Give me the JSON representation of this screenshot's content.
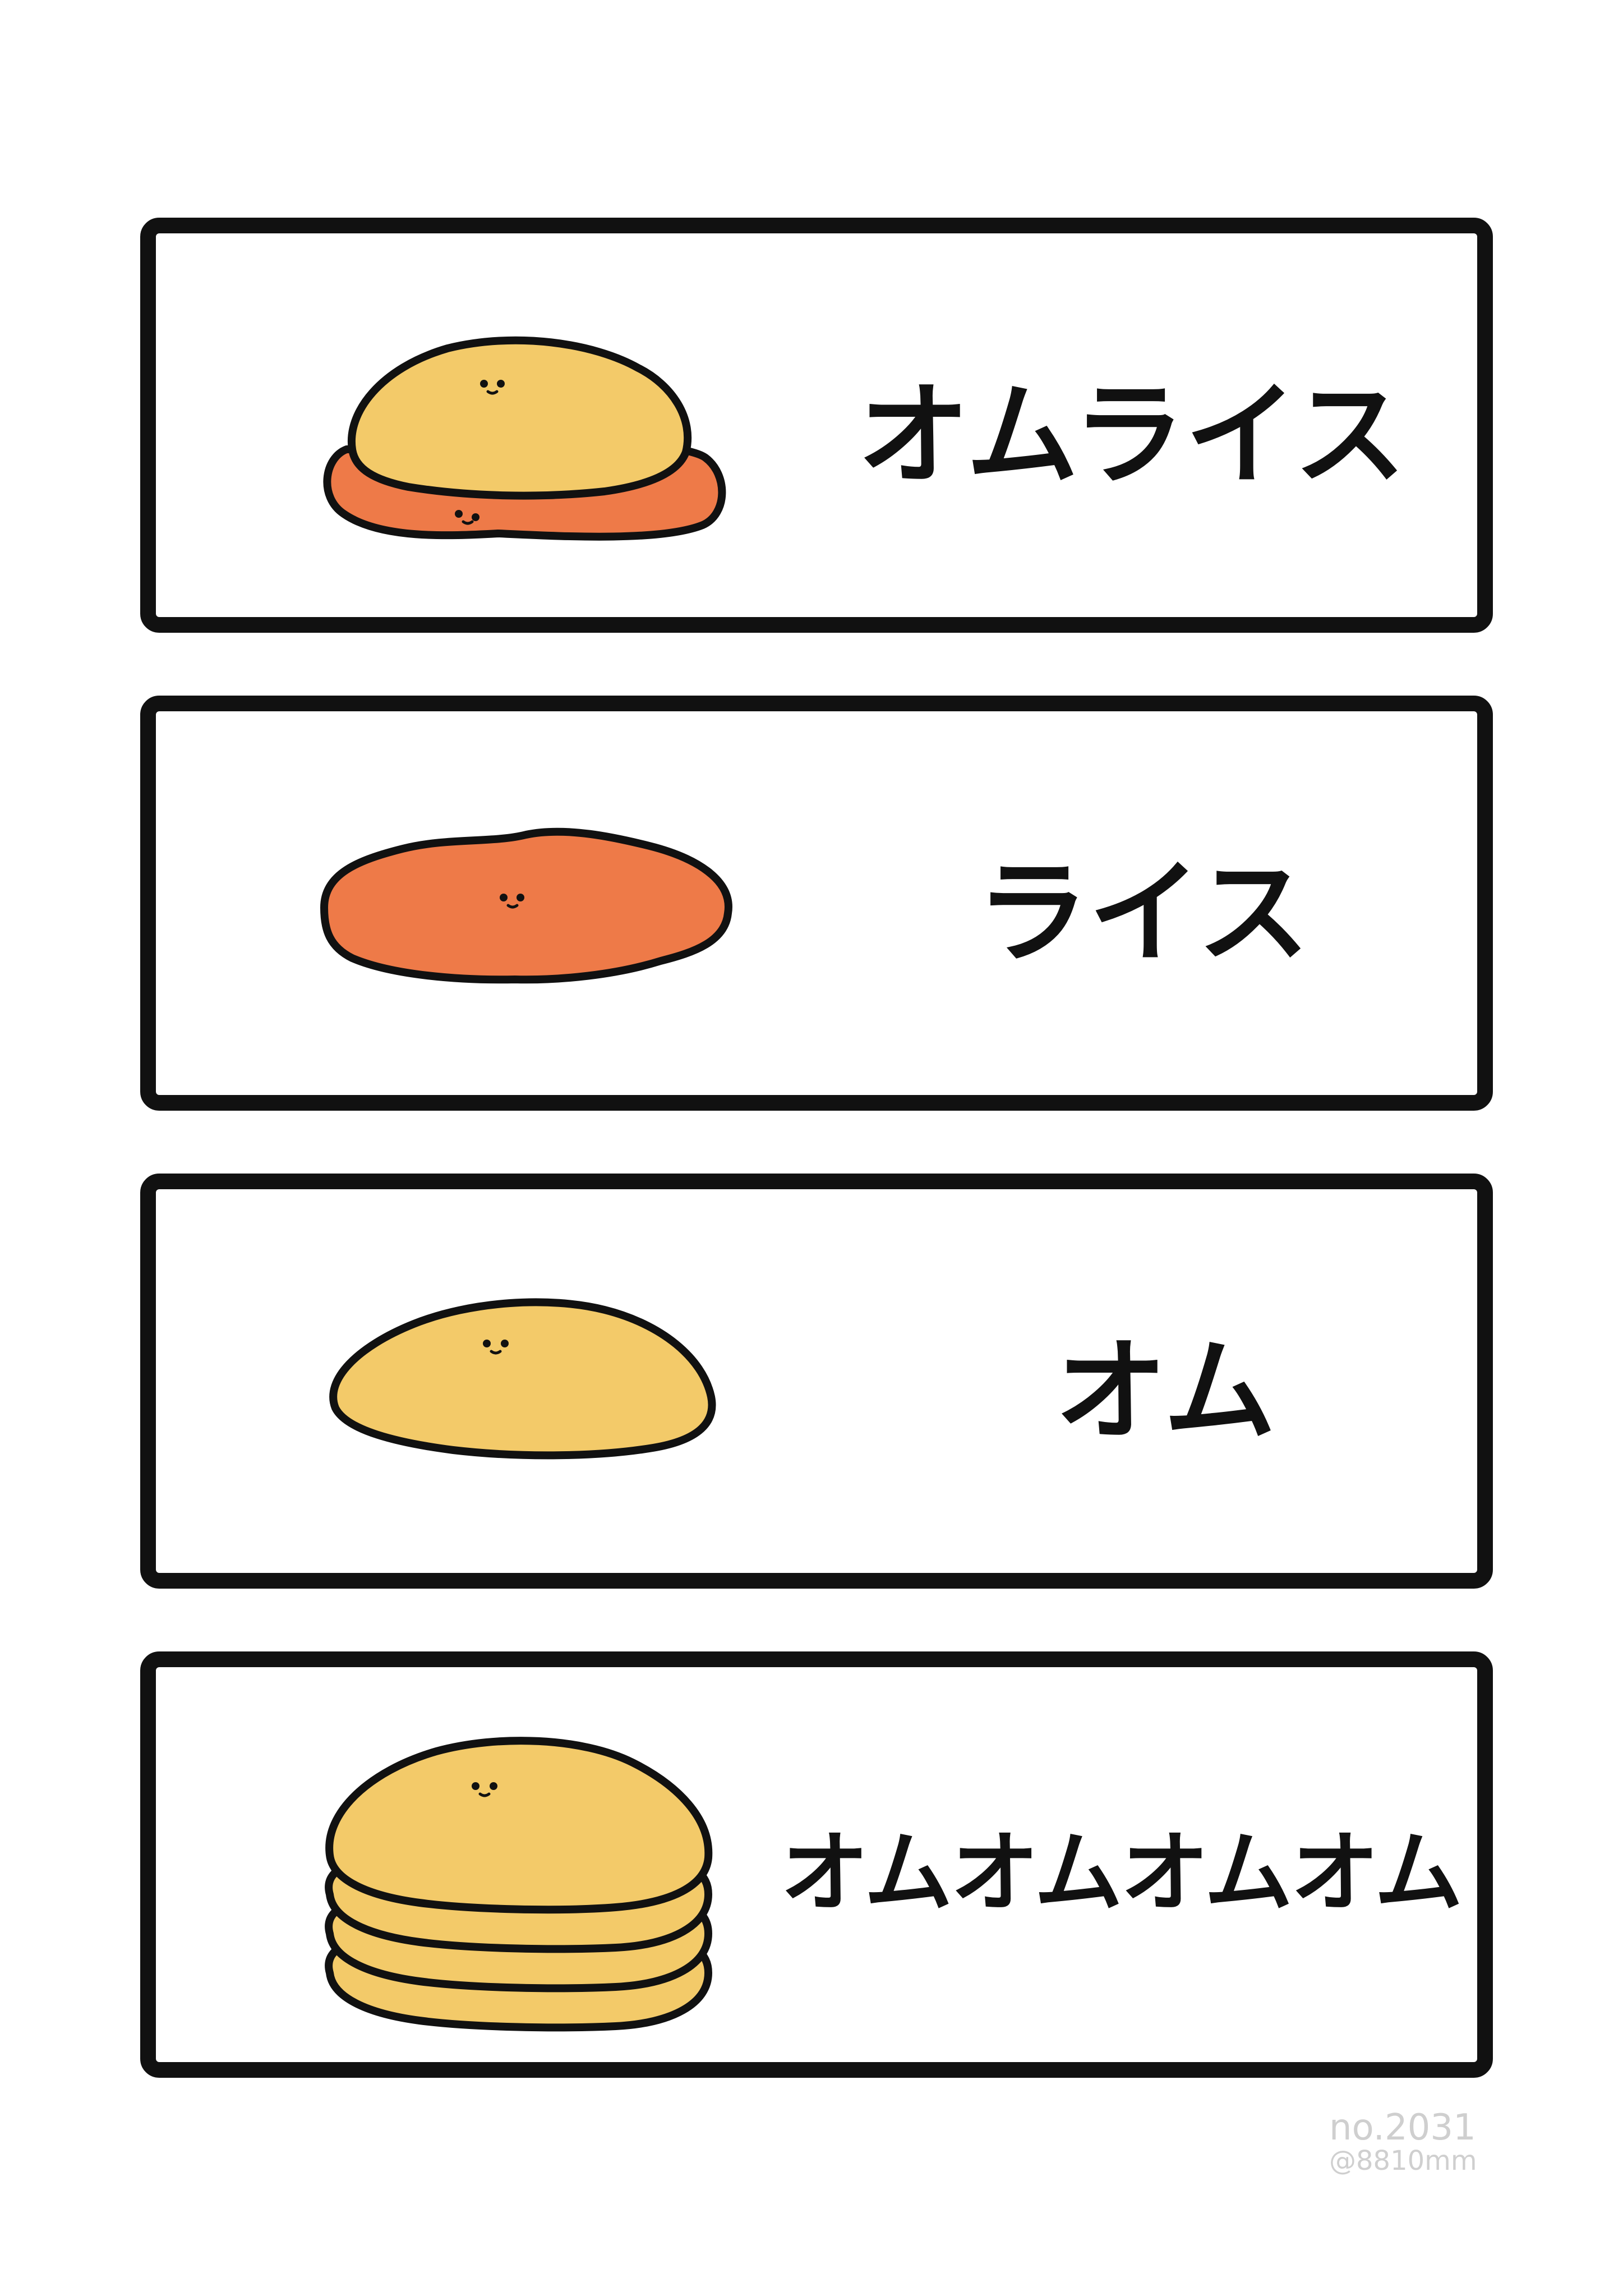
{
  "panels": [
    {
      "caption": "オムライス",
      "food": "omurice"
    },
    {
      "caption": "ライス",
      "food": "rice"
    },
    {
      "caption": "オム",
      "food": "omelette"
    },
    {
      "caption": "オムオムオムオム",
      "food": "stacked-omelettes"
    }
  ],
  "signature": {
    "serial": "no.2031",
    "handle": "@8810mm"
  },
  "colors": {
    "egg": "#f3ca69",
    "rice": "#ee7a48",
    "outline": "#111111",
    "background": "#ffffff"
  }
}
